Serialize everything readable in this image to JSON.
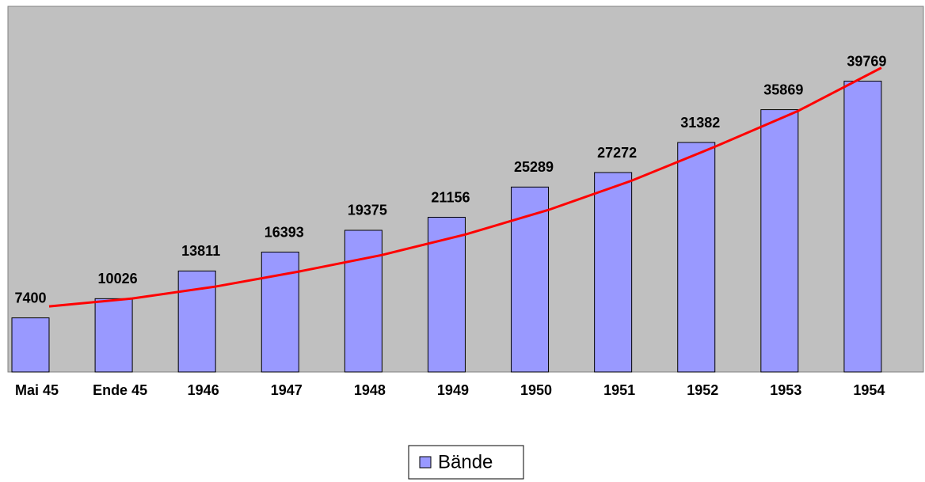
{
  "chart_data": {
    "type": "bar",
    "categories": [
      "Mai 45",
      "Ende 45",
      "1946",
      "1947",
      "1948",
      "1949",
      "1950",
      "1951",
      "1952",
      "1953",
      "1954"
    ],
    "series": [
      {
        "name": "Bände",
        "color": "#9999ff",
        "values": [
          7400,
          10026,
          13811,
          16393,
          19375,
          21156,
          25289,
          27272,
          31382,
          35869,
          39769
        ]
      }
    ],
    "trend": {
      "color": "#ff0000",
      "values": [
        8970,
        10050,
        11680,
        13730,
        16000,
        18800,
        22160,
        26160,
        30800,
        35700,
        41600
      ]
    },
    "ylim": [
      0,
      50000
    ],
    "background": "#c0c0c0",
    "legend": "bottom"
  }
}
